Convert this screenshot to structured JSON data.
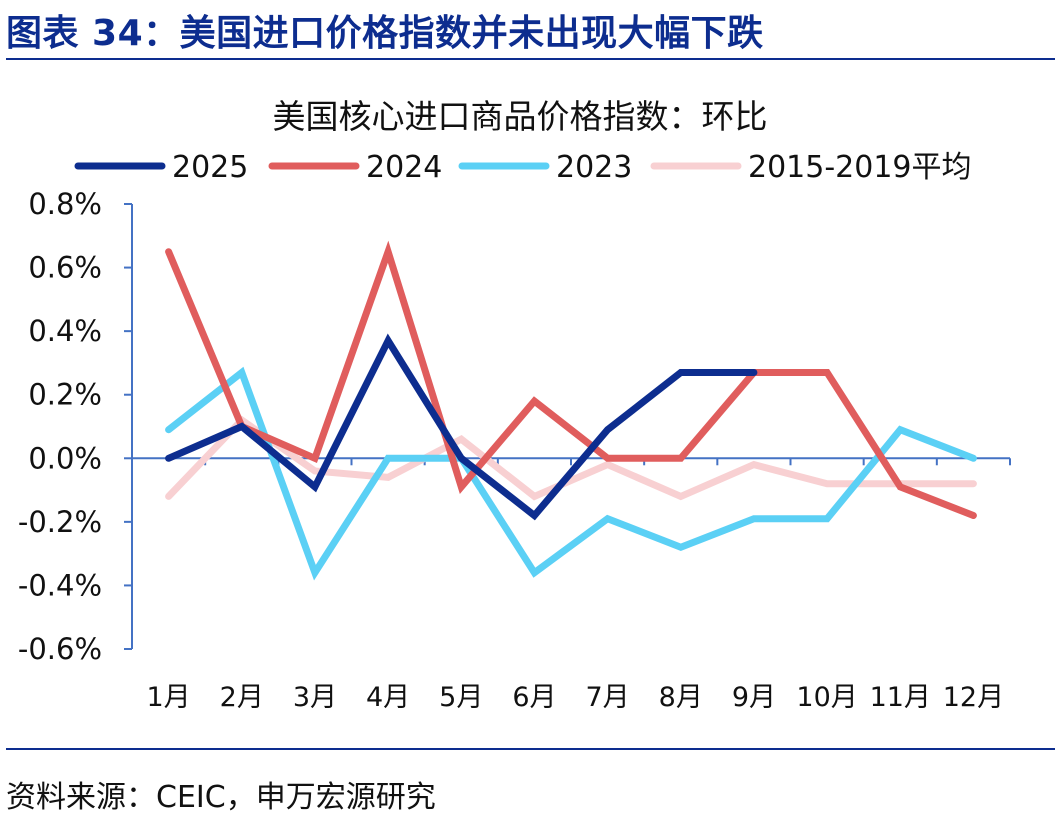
{
  "figure": {
    "title": "图表 34：美国进口价格指数并未出现大幅下跌",
    "source": "资料来源：CEIC，申万宏源研究"
  },
  "colors": {
    "brand": "#0d2d8f",
    "axis": "#4472c4"
  },
  "chart_data": {
    "type": "line",
    "title": "美国核心进口商品价格指数：环比",
    "xlabel": "",
    "ylabel": "",
    "categories": [
      "1月",
      "2月",
      "3月",
      "4月",
      "5月",
      "6月",
      "7月",
      "8月",
      "9月",
      "10月",
      "11月",
      "12月"
    ],
    "ylim": [
      -0.6,
      0.8
    ],
    "y_ticks": [
      0.8,
      0.6,
      0.4,
      0.2,
      0.0,
      -0.2,
      -0.4,
      -0.6
    ],
    "y_tick_labels": [
      "0.8%",
      "0.6%",
      "0.4%",
      "0.2%",
      "0.0%",
      "-0.2%",
      "-0.4%",
      "-0.6%"
    ],
    "grid": false,
    "legend_position": "top",
    "series": [
      {
        "name": "2025",
        "color": "#0d2d8f",
        "values": [
          0.0,
          0.1,
          -0.09,
          0.37,
          0.0,
          -0.18,
          0.09,
          0.27,
          0.27,
          null,
          null,
          null
        ]
      },
      {
        "name": "2024",
        "color": "#e05d5d",
        "values": [
          0.65,
          0.1,
          0.0,
          0.65,
          -0.09,
          0.18,
          0.0,
          0.0,
          0.27,
          0.27,
          -0.09,
          -0.18
        ]
      },
      {
        "name": "2023",
        "color": "#5bd0f5",
        "values": [
          0.09,
          0.27,
          -0.36,
          0.0,
          0.0,
          -0.36,
          -0.19,
          -0.28,
          -0.19,
          -0.19,
          0.09,
          0.0
        ]
      },
      {
        "name": "2015-2019平均",
        "color": "#f8d0d2",
        "values": [
          -0.12,
          0.12,
          -0.04,
          -0.06,
          0.06,
          -0.12,
          -0.02,
          -0.12,
          -0.02,
          -0.08,
          -0.08,
          -0.08
        ]
      }
    ]
  }
}
